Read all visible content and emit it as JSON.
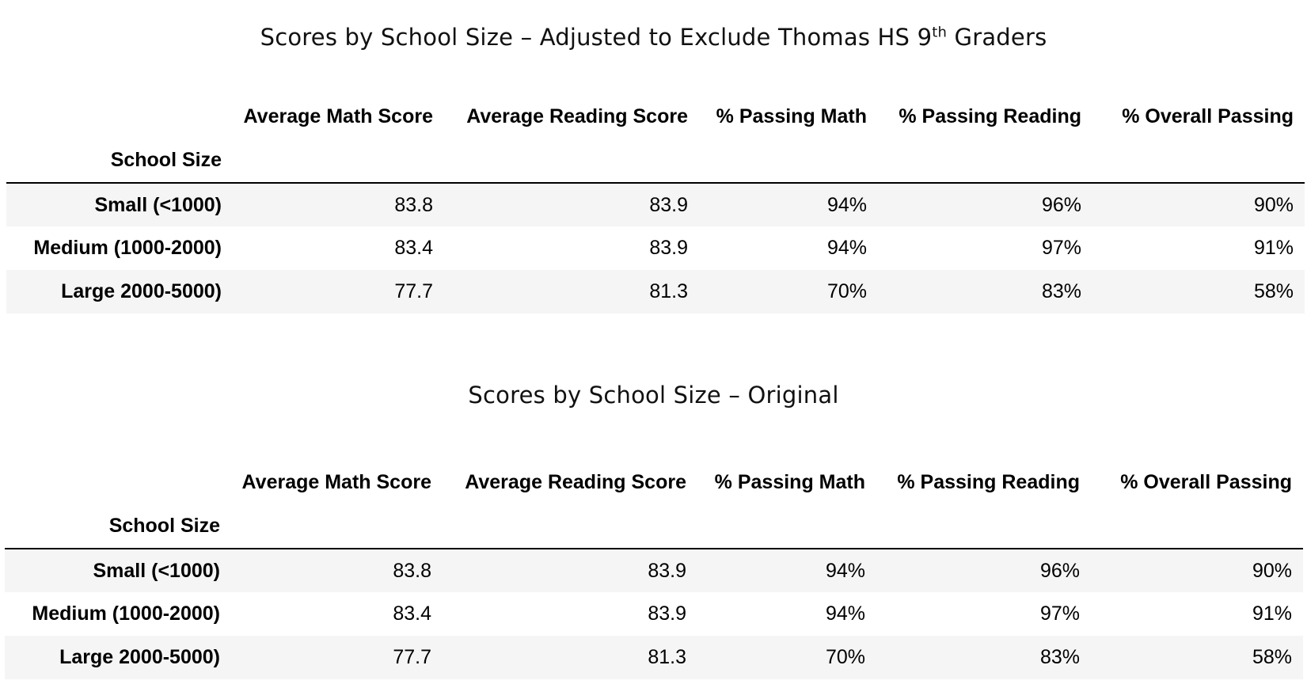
{
  "tables": [
    {
      "title_main": "Scores by School Size – Adjusted to Exclude Thomas HS 9",
      "title_sup": "th",
      "title_tail": " Graders",
      "columns": [
        "Average Math Score",
        "Average Reading Score",
        "% Passing Math",
        "% Passing Reading",
        "% Overall Passing"
      ],
      "index_name": "School Size",
      "rows": [
        {
          "label": "Small (<1000)",
          "values": [
            "83.8",
            "83.9",
            "94%",
            "96%",
            "90%"
          ]
        },
        {
          "label": "Medium (1000-2000)",
          "values": [
            "83.4",
            "83.9",
            "94%",
            "97%",
            "91%"
          ]
        },
        {
          "label": "Large 2000-5000)",
          "values": [
            "77.7",
            "81.3",
            "70%",
            "83%",
            "58%"
          ]
        }
      ]
    },
    {
      "title_main": "Scores by School Size – Original",
      "title_sup": "",
      "title_tail": "",
      "columns": [
        "Average Math Score",
        "Average Reading Score",
        "% Passing Math",
        "% Passing Reading",
        "% Overall Passing"
      ],
      "index_name": "School Size",
      "rows": [
        {
          "label": "Small (<1000)",
          "values": [
            "83.8",
            "83.9",
            "94%",
            "96%",
            "90%"
          ]
        },
        {
          "label": "Medium (1000-2000)",
          "values": [
            "83.4",
            "83.9",
            "94%",
            "97%",
            "91%"
          ]
        },
        {
          "label": "Large 2000-5000)",
          "values": [
            "77.7",
            "81.3",
            "70%",
            "83%",
            "58%"
          ]
        }
      ]
    }
  ],
  "colors": {
    "stripe": "#f5f5f5",
    "rule": "#000000"
  }
}
